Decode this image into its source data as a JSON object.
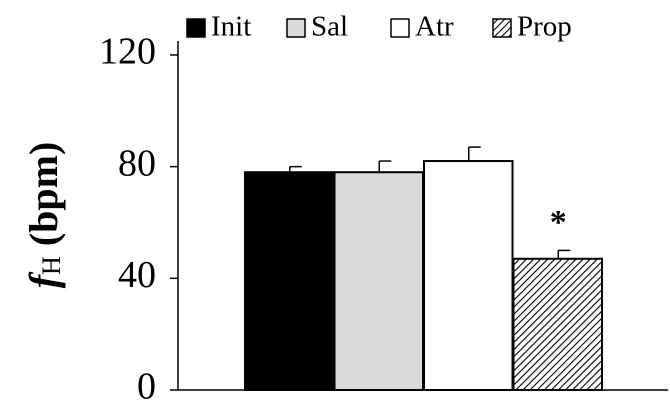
{
  "chart_data": {
    "type": "bar",
    "y_label": "fH (bpm)",
    "categories": [
      "Init",
      "Sal",
      "Atr",
      "Prop"
    ],
    "values": [
      78,
      78,
      82,
      47
    ],
    "errors": [
      2,
      4,
      5,
      3
    ],
    "colors": [
      "#000000",
      "#d9d9d9",
      "#ffffff",
      "#ffffff"
    ],
    "hatch": [
      false,
      false,
      false,
      true
    ],
    "annotation": "*",
    "ylim": [
      0,
      125
    ],
    "yticks": [
      0,
      40,
      80,
      120
    ],
    "grid": false,
    "legend": "top"
  }
}
